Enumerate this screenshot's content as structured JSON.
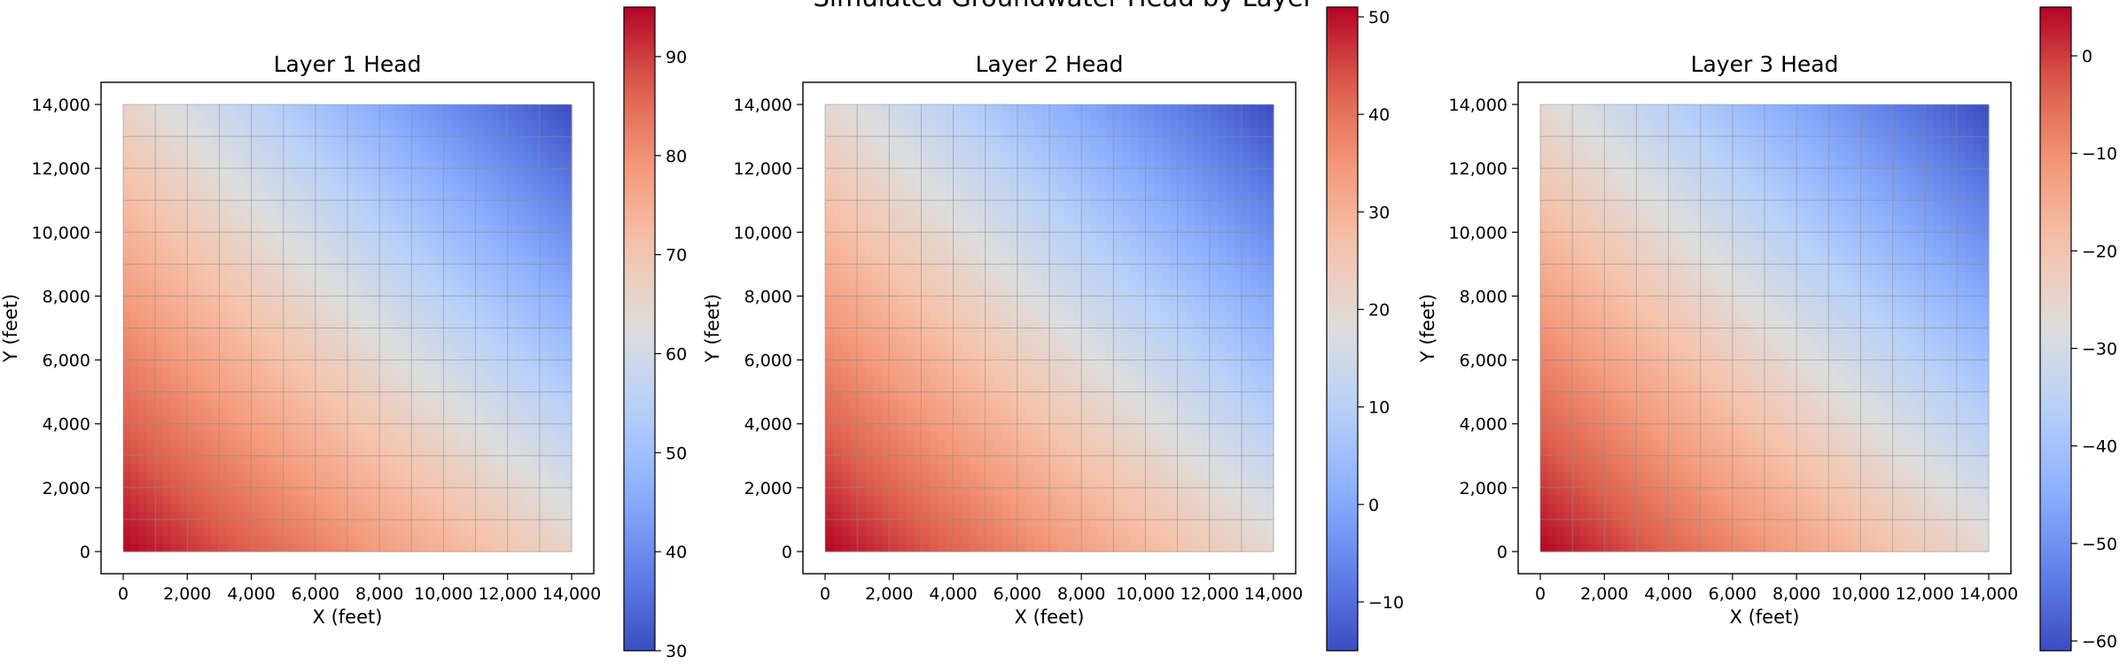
{
  "figure": {
    "title": "Simulated Groundwater Head by Layer"
  },
  "chart_data": [
    {
      "type": "heatmap",
      "title": "Layer 1 Head",
      "xlabel": "X (feet)",
      "ylabel": "Y (feet)",
      "x_ticks": [
        "0",
        "2,000",
        "4,000",
        "6,000",
        "8,000",
        "10,000",
        "12,000",
        "14,000"
      ],
      "y_ticks": [
        "0",
        "2,000",
        "4,000",
        "6,000",
        "8,000",
        "10,000",
        "12,000",
        "14,000"
      ],
      "xlim": [
        0,
        14000
      ],
      "ylim": [
        0,
        14000
      ],
      "grid": true,
      "colormap": "coolwarm",
      "colorbar": {
        "min": 30,
        "max": 95,
        "ticks": [
          "30",
          "40",
          "50",
          "60",
          "70",
          "80",
          "90"
        ]
      },
      "corner_values": {
        "x0_y0": 95,
        "x14000_y0": 66,
        "x0_y14000": 66,
        "x14000_y14000": 30
      }
    },
    {
      "type": "heatmap",
      "title": "Layer 2 Head",
      "xlabel": "X (feet)",
      "ylabel": "Y (feet)",
      "x_ticks": [
        "0",
        "2,000",
        "4,000",
        "6,000",
        "8,000",
        "10,000",
        "12,000",
        "14,000"
      ],
      "y_ticks": [
        "0",
        "2,000",
        "4,000",
        "6,000",
        "8,000",
        "10,000",
        "12,000",
        "14,000"
      ],
      "xlim": [
        0,
        14000
      ],
      "ylim": [
        0,
        14000
      ],
      "grid": true,
      "colormap": "coolwarm",
      "colorbar": {
        "min": -15,
        "max": 51,
        "ticks": [
          "−10",
          "0",
          "10",
          "20",
          "30",
          "40",
          "50"
        ]
      },
      "corner_values": {
        "x0_y0": 51,
        "x14000_y0": 20,
        "x0_y14000": 20,
        "x14000_y14000": -15
      }
    },
    {
      "type": "heatmap",
      "title": "Layer 3 Head",
      "xlabel": "X (feet)",
      "ylabel": "Y (feet)",
      "x_ticks": [
        "0",
        "2,000",
        "4,000",
        "6,000",
        "8,000",
        "10,000",
        "12,000",
        "14,000"
      ],
      "y_ticks": [
        "0",
        "2,000",
        "4,000",
        "6,000",
        "8,000",
        "10,000",
        "12,000",
        "14,000"
      ],
      "xlim": [
        0,
        14000
      ],
      "ylim": [
        0,
        14000
      ],
      "grid": true,
      "colormap": "coolwarm",
      "colorbar": {
        "min": -61,
        "max": 5,
        "ticks": [
          "−60",
          "−50",
          "−40",
          "−30",
          "−20",
          "−10",
          "0"
        ]
      },
      "corner_values": {
        "x0_y0": 5,
        "x14000_y0": -26,
        "x0_y14000": -26,
        "x14000_y14000": -61
      }
    }
  ]
}
